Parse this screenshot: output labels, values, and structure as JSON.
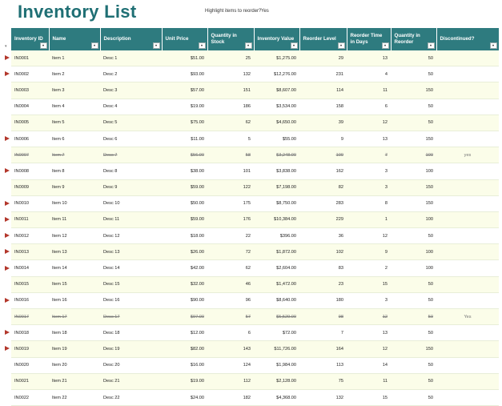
{
  "title": "Inventory List",
  "highlight": {
    "label": "Highlight items to reorder?",
    "value": "Yes"
  },
  "colors": {
    "header_bg": "#2e7b7f",
    "title": "#1f6f74",
    "flag": "#b3372b",
    "band": "#fbfde9"
  },
  "columns": [
    "Inventory ID",
    "Name",
    "Description",
    "Unit Price",
    "Quantity in Stock",
    "Inventory Value",
    "Reorder Level",
    "Reorder Time in Days",
    "Quantity in Reorder",
    "Discontinued?"
  ],
  "rows": [
    {
      "id": "IN0001",
      "name": "Item 1",
      "desc": "Desc 1",
      "price": "$51.00",
      "qty": "25",
      "value": "$1,275.00",
      "reorder_level": "29",
      "days": "13",
      "reorder_qty": "50",
      "disc": "",
      "flag": true
    },
    {
      "id": "IN0002",
      "name": "Item 2",
      "desc": "Desc 2",
      "price": "$93.00",
      "qty": "132",
      "value": "$12,276.00",
      "reorder_level": "231",
      "days": "4",
      "reorder_qty": "50",
      "disc": "",
      "flag": true
    },
    {
      "id": "IN0003",
      "name": "Item 3",
      "desc": "Desc 3",
      "price": "$57.00",
      "qty": "151",
      "value": "$8,607.00",
      "reorder_level": "114",
      "days": "11",
      "reorder_qty": "150",
      "disc": "",
      "flag": false
    },
    {
      "id": "IN0004",
      "name": "Item 4",
      "desc": "Desc 4",
      "price": "$19.00",
      "qty": "186",
      "value": "$3,534.00",
      "reorder_level": "158",
      "days": "6",
      "reorder_qty": "50",
      "disc": "",
      "flag": false
    },
    {
      "id": "IN0005",
      "name": "Item 5",
      "desc": "Desc 5",
      "price": "$75.00",
      "qty": "62",
      "value": "$4,650.00",
      "reorder_level": "39",
      "days": "12",
      "reorder_qty": "50",
      "disc": "",
      "flag": false
    },
    {
      "id": "IN0006",
      "name": "Item 6",
      "desc": "Desc 6",
      "price": "$11.00",
      "qty": "5",
      "value": "$55.00",
      "reorder_level": "9",
      "days": "13",
      "reorder_qty": "150",
      "disc": "",
      "flag": true
    },
    {
      "id": "IN0007",
      "name": "Item 7",
      "desc": "Desc 7",
      "price": "$56.00",
      "qty": "58",
      "value": "$3,248.00",
      "reorder_level": "109",
      "days": "7",
      "reorder_qty": "100",
      "disc": "yes",
      "flag": false
    },
    {
      "id": "IN0008",
      "name": "Item 8",
      "desc": "Desc 8",
      "price": "$38.00",
      "qty": "101",
      "value": "$3,838.00",
      "reorder_level": "162",
      "days": "3",
      "reorder_qty": "100",
      "disc": "",
      "flag": true
    },
    {
      "id": "IN0009",
      "name": "Item 9",
      "desc": "Desc 9",
      "price": "$59.00",
      "qty": "122",
      "value": "$7,198.00",
      "reorder_level": "82",
      "days": "3",
      "reorder_qty": "150",
      "disc": "",
      "flag": false
    },
    {
      "id": "IN0010",
      "name": "Item 10",
      "desc": "Desc 10",
      "price": "$50.00",
      "qty": "175",
      "value": "$8,750.00",
      "reorder_level": "283",
      "days": "8",
      "reorder_qty": "150",
      "disc": "",
      "flag": true
    },
    {
      "id": "IN0011",
      "name": "Item 11",
      "desc": "Desc 11",
      "price": "$59.00",
      "qty": "176",
      "value": "$10,384.00",
      "reorder_level": "229",
      "days": "1",
      "reorder_qty": "100",
      "disc": "",
      "flag": true
    },
    {
      "id": "IN0012",
      "name": "Item 12",
      "desc": "Desc 12",
      "price": "$18.00",
      "qty": "22",
      "value": "$396.00",
      "reorder_level": "36",
      "days": "12",
      "reorder_qty": "50",
      "disc": "",
      "flag": true
    },
    {
      "id": "IN0013",
      "name": "Item 13",
      "desc": "Desc 13",
      "price": "$26.00",
      "qty": "72",
      "value": "$1,872.00",
      "reorder_level": "102",
      "days": "9",
      "reorder_qty": "100",
      "disc": "",
      "flag": true
    },
    {
      "id": "IN0014",
      "name": "Item 14",
      "desc": "Desc 14",
      "price": "$42.00",
      "qty": "62",
      "value": "$2,604.00",
      "reorder_level": "83",
      "days": "2",
      "reorder_qty": "100",
      "disc": "",
      "flag": true
    },
    {
      "id": "IN0015",
      "name": "Item 15",
      "desc": "Desc 15",
      "price": "$32.00",
      "qty": "46",
      "value": "$1,472.00",
      "reorder_level": "23",
      "days": "15",
      "reorder_qty": "50",
      "disc": "",
      "flag": false
    },
    {
      "id": "IN0016",
      "name": "Item 16",
      "desc": "Desc 16",
      "price": "$90.00",
      "qty": "96",
      "value": "$8,640.00",
      "reorder_level": "180",
      "days": "3",
      "reorder_qty": "50",
      "disc": "",
      "flag": true
    },
    {
      "id": "IN0017",
      "name": "Item 17",
      "desc": "Desc 17",
      "price": "$97.00",
      "qty": "57",
      "value": "$5,529.00",
      "reorder_level": "98",
      "days": "12",
      "reorder_qty": "50",
      "disc": "Yes",
      "flag": false
    },
    {
      "id": "IN0018",
      "name": "Item 18",
      "desc": "Desc 18",
      "price": "$12.00",
      "qty": "6",
      "value": "$72.00",
      "reorder_level": "7",
      "days": "13",
      "reorder_qty": "50",
      "disc": "",
      "flag": true
    },
    {
      "id": "IN0019",
      "name": "Item 19",
      "desc": "Desc 19",
      "price": "$82.00",
      "qty": "143",
      "value": "$11,726.00",
      "reorder_level": "164",
      "days": "12",
      "reorder_qty": "150",
      "disc": "",
      "flag": true
    },
    {
      "id": "IN0020",
      "name": "Item 20",
      "desc": "Desc 20",
      "price": "$16.00",
      "qty": "124",
      "value": "$1,984.00",
      "reorder_level": "113",
      "days": "14",
      "reorder_qty": "50",
      "disc": "",
      "flag": false
    },
    {
      "id": "IN0021",
      "name": "Item 21",
      "desc": "Desc 21",
      "price": "$19.00",
      "qty": "112",
      "value": "$2,128.00",
      "reorder_level": "75",
      "days": "11",
      "reorder_qty": "50",
      "disc": "",
      "flag": false
    },
    {
      "id": "IN0022",
      "name": "Item 22",
      "desc": "Desc 22",
      "price": "$24.00",
      "qty": "182",
      "value": "$4,368.00",
      "reorder_level": "132",
      "days": "15",
      "reorder_qty": "50",
      "disc": "",
      "flag": false
    }
  ]
}
